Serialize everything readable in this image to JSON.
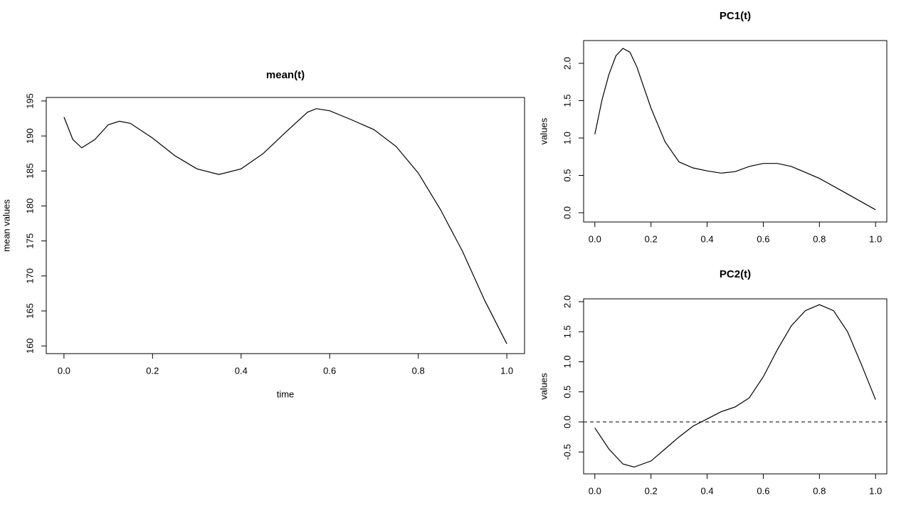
{
  "chart_data": [
    {
      "type": "line",
      "title": "mean(t)",
      "xlabel": "time",
      "ylabel": "mean values",
      "color": "#000000",
      "x": [
        0,
        0.02,
        0.04,
        0.07,
        0.1,
        0.125,
        0.15,
        0.2,
        0.25,
        0.3,
        0.35,
        0.4,
        0.45,
        0.5,
        0.55,
        0.57,
        0.6,
        0.65,
        0.7,
        0.75,
        0.8,
        0.85,
        0.9,
        0.95,
        1.0
      ],
      "values": [
        192.7,
        189.5,
        188.3,
        189.5,
        191.6,
        192.1,
        191.8,
        189.7,
        187.2,
        185.3,
        184.5,
        185.3,
        187.5,
        190.5,
        193.4,
        193.9,
        193.6,
        192.3,
        190.9,
        188.5,
        184.7,
        179.5,
        173.5,
        166.5,
        160.3
      ],
      "xlim": [
        -0.04,
        1.04
      ],
      "ylim": [
        158.9,
        195.5
      ],
      "xticks": [
        {
          "value": 0,
          "label": "0.0"
        },
        0.2,
        0.4,
        0.6,
        0.8,
        {
          "value": 1,
          "label": "1.0"
        }
      ],
      "yticks": [
        160,
        165,
        170,
        175,
        180,
        185,
        190,
        195
      ]
    },
    {
      "type": "line",
      "title": "PC1(t)",
      "ylabel": "values",
      "color": "#000000",
      "x": [
        0,
        0.025,
        0.05,
        0.075,
        0.1,
        0.125,
        0.15,
        0.2,
        0.25,
        0.3,
        0.35,
        0.4,
        0.45,
        0.5,
        0.55,
        0.6,
        0.65,
        0.7,
        0.8,
        0.9,
        1.0
      ],
      "values": [
        1.05,
        1.5,
        1.85,
        2.1,
        2.2,
        2.15,
        1.95,
        1.4,
        0.95,
        0.68,
        0.6,
        0.56,
        0.53,
        0.55,
        0.62,
        0.66,
        0.66,
        0.62,
        0.46,
        0.25,
        0.04
      ],
      "xlim": [
        -0.04,
        1.04
      ],
      "ylim": [
        -0.124,
        2.305
      ],
      "xticks": [
        {
          "value": 0,
          "label": "0.0"
        },
        0.2,
        0.4,
        0.6,
        0.8,
        {
          "value": 1,
          "label": "1.0"
        }
      ],
      "yticks": [
        {
          "value": 0,
          "label": "0.0"
        },
        0.5,
        {
          "value": 1,
          "label": "1.0"
        },
        1.5,
        {
          "value": 2,
          "label": "2.0"
        }
      ]
    },
    {
      "type": "line",
      "title": "PC2(t)",
      "ylabel": "values",
      "color": "#000000",
      "hline": 0,
      "x": [
        0,
        0.05,
        0.1,
        0.14,
        0.2,
        0.25,
        0.3,
        0.35,
        0.4,
        0.45,
        0.5,
        0.55,
        0.6,
        0.65,
        0.7,
        0.75,
        0.8,
        0.85,
        0.9,
        0.95,
        1.0
      ],
      "values": [
        -0.1,
        -0.45,
        -0.7,
        -0.75,
        -0.65,
        -0.45,
        -0.25,
        -0.07,
        0.05,
        0.17,
        0.25,
        0.4,
        0.75,
        1.2,
        1.6,
        1.85,
        1.95,
        1.85,
        1.5,
        0.95,
        0.37
      ],
      "xlim": [
        -0.04,
        1.04
      ],
      "ylim": [
        -0.864,
        2.047
      ],
      "xticks": [
        {
          "value": 0,
          "label": "0.0"
        },
        0.2,
        0.4,
        0.6,
        0.8,
        {
          "value": 1,
          "label": "1.0"
        }
      ],
      "yticks": [
        -0.5,
        {
          "value": 0,
          "label": "0.0"
        },
        0.5,
        {
          "value": 1,
          "label": "1.0"
        },
        1.5,
        {
          "value": 2,
          "label": "2.0"
        }
      ]
    }
  ]
}
